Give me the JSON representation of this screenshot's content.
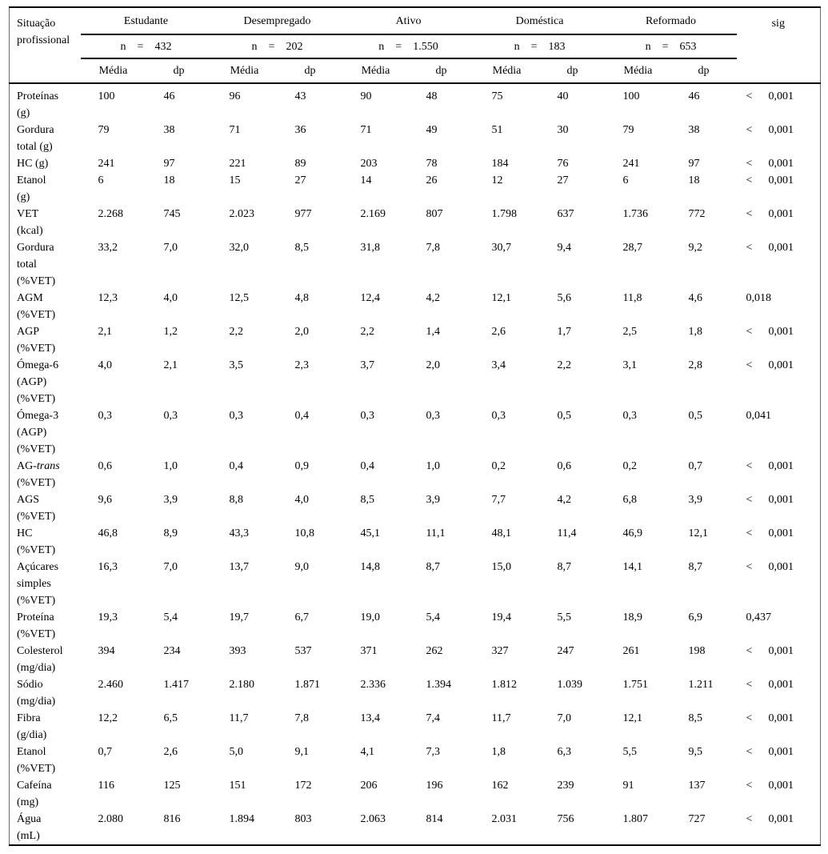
{
  "table": {
    "row_header_lines": [
      "Situação",
      "profissional"
    ],
    "sig_header": "sig",
    "n_label": "n",
    "eq_sign": "=",
    "mean_header": "Média",
    "sd_header": "dp",
    "groups": [
      {
        "label": "Estudante",
        "n": "432"
      },
      {
        "label": "Desempregado",
        "n": "202"
      },
      {
        "label": "Ativo",
        "n": "1.550"
      },
      {
        "label": "Doméstica",
        "n": "183"
      },
      {
        "label": "Reformado",
        "n": "653"
      }
    ],
    "rows": [
      {
        "label_lines": [
          "Proteínas",
          "(g)"
        ],
        "values": [
          "100",
          "46",
          "96",
          "43",
          "90",
          "48",
          "75",
          "40",
          "100",
          "46"
        ],
        "sig_cmp": "<",
        "sig": "0,001"
      },
      {
        "label_lines": [
          "Gordura",
          "total (g)"
        ],
        "values": [
          "79",
          "38",
          "71",
          "36",
          "71",
          "49",
          "51",
          "30",
          "79",
          "38"
        ],
        "sig_cmp": "<",
        "sig": "0,001"
      },
      {
        "label_lines": [
          "HC (g)"
        ],
        "values": [
          "241",
          "97",
          "221",
          "89",
          "203",
          "78",
          "184",
          "76",
          "241",
          "97"
        ],
        "sig_cmp": "<",
        "sig": "0,001"
      },
      {
        "label_lines": [
          "Etanol",
          "(g)"
        ],
        "values": [
          "6",
          "18",
          "15",
          "27",
          "14",
          "26",
          "12",
          "27",
          "6",
          "18"
        ],
        "sig_cmp": "<",
        "sig": "0,001"
      },
      {
        "label_lines": [
          "VET",
          "(kcal)"
        ],
        "values": [
          "2.268",
          "745",
          "2.023",
          "977",
          "2.169",
          "807",
          "1.798",
          "637",
          "1.736",
          "772"
        ],
        "sig_cmp": "<",
        "sig": "0,001"
      },
      {
        "label_lines": [
          "Gordura",
          "total",
          "(%VET)"
        ],
        "values": [
          "33,2",
          "7,0",
          "32,0",
          "8,5",
          "31,8",
          "7,8",
          "30,7",
          "9,4",
          "28,7",
          "9,2"
        ],
        "sig_cmp": "<",
        "sig": "0,001"
      },
      {
        "label_lines": [
          "AGM",
          "(%VET)"
        ],
        "values": [
          "12,3",
          "4,0",
          "12,5",
          "4,8",
          "12,4",
          "4,2",
          "12,1",
          "5,6",
          "11,8",
          "4,6"
        ],
        "sig_cmp": "",
        "sig": "0,018"
      },
      {
        "label_lines": [
          "AGP",
          "(%VET)"
        ],
        "values": [
          "2,1",
          "1,2",
          "2,2",
          "2,0",
          "2,2",
          "1,4",
          "2,6",
          "1,7",
          "2,5",
          "1,8"
        ],
        "sig_cmp": "<",
        "sig": "0,001"
      },
      {
        "label_lines": [
          "Ómega-6",
          "(AGP)",
          "(%VET)"
        ],
        "values": [
          "4,0",
          "2,1",
          "3,5",
          "2,3",
          "3,7",
          "2,0",
          "3,4",
          "2,2",
          "3,1",
          "2,8"
        ],
        "sig_cmp": "<",
        "sig": "0,001"
      },
      {
        "label_lines": [
          "Ómega-3",
          "(AGP)",
          "(%VET)"
        ],
        "values": [
          "0,3",
          "0,3",
          "0,3",
          "0,4",
          "0,3",
          "0,3",
          "0,3",
          "0,5",
          "0,3",
          "0,5"
        ],
        "sig_cmp": "",
        "sig": "0,041"
      },
      {
        "label_lines": [
          "AG-*trans*",
          "(%VET)"
        ],
        "values": [
          "0,6",
          "1,0",
          "0,4",
          "0,9",
          "0,4",
          "1,0",
          "0,2",
          "0,6",
          "0,2",
          "0,7"
        ],
        "sig_cmp": "<",
        "sig": "0,001"
      },
      {
        "label_lines": [
          "AGS",
          "(%VET)"
        ],
        "values": [
          "9,6",
          "3,9",
          "8,8",
          "4,0",
          "8,5",
          "3,9",
          "7,7",
          "4,2",
          "6,8",
          "3,9"
        ],
        "sig_cmp": "<",
        "sig": "0,001"
      },
      {
        "label_lines": [
          "HC",
          "(%VET)"
        ],
        "values": [
          "46,8",
          "8,9",
          "43,3",
          "10,8",
          "45,1",
          "11,1",
          "48,1",
          "11,4",
          "46,9",
          "12,1"
        ],
        "sig_cmp": "<",
        "sig": "0,001"
      },
      {
        "label_lines": [
          "Açúcares",
          "simples",
          "(%VET)"
        ],
        "values": [
          "16,3",
          "7,0",
          "13,7",
          "9,0",
          "14,8",
          "8,7",
          "15,0",
          "8,7",
          "14,1",
          "8,7"
        ],
        "sig_cmp": "<",
        "sig": "0,001"
      },
      {
        "label_lines": [
          "Proteína",
          "(%VET)"
        ],
        "values": [
          "19,3",
          "5,4",
          "19,7",
          "6,7",
          "19,0",
          "5,4",
          "19,4",
          "5,5",
          "18,9",
          "6,9"
        ],
        "sig_cmp": "",
        "sig": "0,437"
      },
      {
        "label_lines": [
          "Colesterol",
          "(mg/dia)"
        ],
        "values": [
          "394",
          "234",
          "393",
          "537",
          "371",
          "262",
          "327",
          "247",
          "261",
          "198"
        ],
        "sig_cmp": "<",
        "sig": "0,001"
      },
      {
        "label_lines": [
          "Sódio",
          "(mg/dia)"
        ],
        "values": [
          "2.460",
          "1.417",
          "2.180",
          "1.871",
          "2.336",
          "1.394",
          "1.812",
          "1.039",
          "1.751",
          "1.211"
        ],
        "sig_cmp": "<",
        "sig": "0,001"
      },
      {
        "label_lines": [
          "Fibra",
          "(g/dia)"
        ],
        "values": [
          "12,2",
          "6,5",
          "11,7",
          "7,8",
          "13,4",
          "7,4",
          "11,7",
          "7,0",
          "12,1",
          "8,5"
        ],
        "sig_cmp": "<",
        "sig": "0,001"
      },
      {
        "label_lines": [
          "Etanol",
          "(%VET)"
        ],
        "values": [
          "0,7",
          "2,6",
          "5,0",
          "9,1",
          "4,1",
          "7,3",
          "1,8",
          "6,3",
          "5,5",
          "9,5"
        ],
        "sig_cmp": "<",
        "sig": "0,001"
      },
      {
        "label_lines": [
          "Cafeína",
          "(mg)"
        ],
        "values": [
          "116",
          "125",
          "151",
          "172",
          "206",
          "196",
          "162",
          "239",
          "91",
          "137"
        ],
        "sig_cmp": "<",
        "sig": "0,001"
      },
      {
        "label_lines": [
          "Água",
          "(mL)"
        ],
        "values": [
          "2.080",
          "816",
          "1.894",
          "803",
          "2.063",
          "814",
          "2.031",
          "756",
          "1.807",
          "727"
        ],
        "sig_cmp": "<",
        "sig": "0,001"
      }
    ]
  }
}
